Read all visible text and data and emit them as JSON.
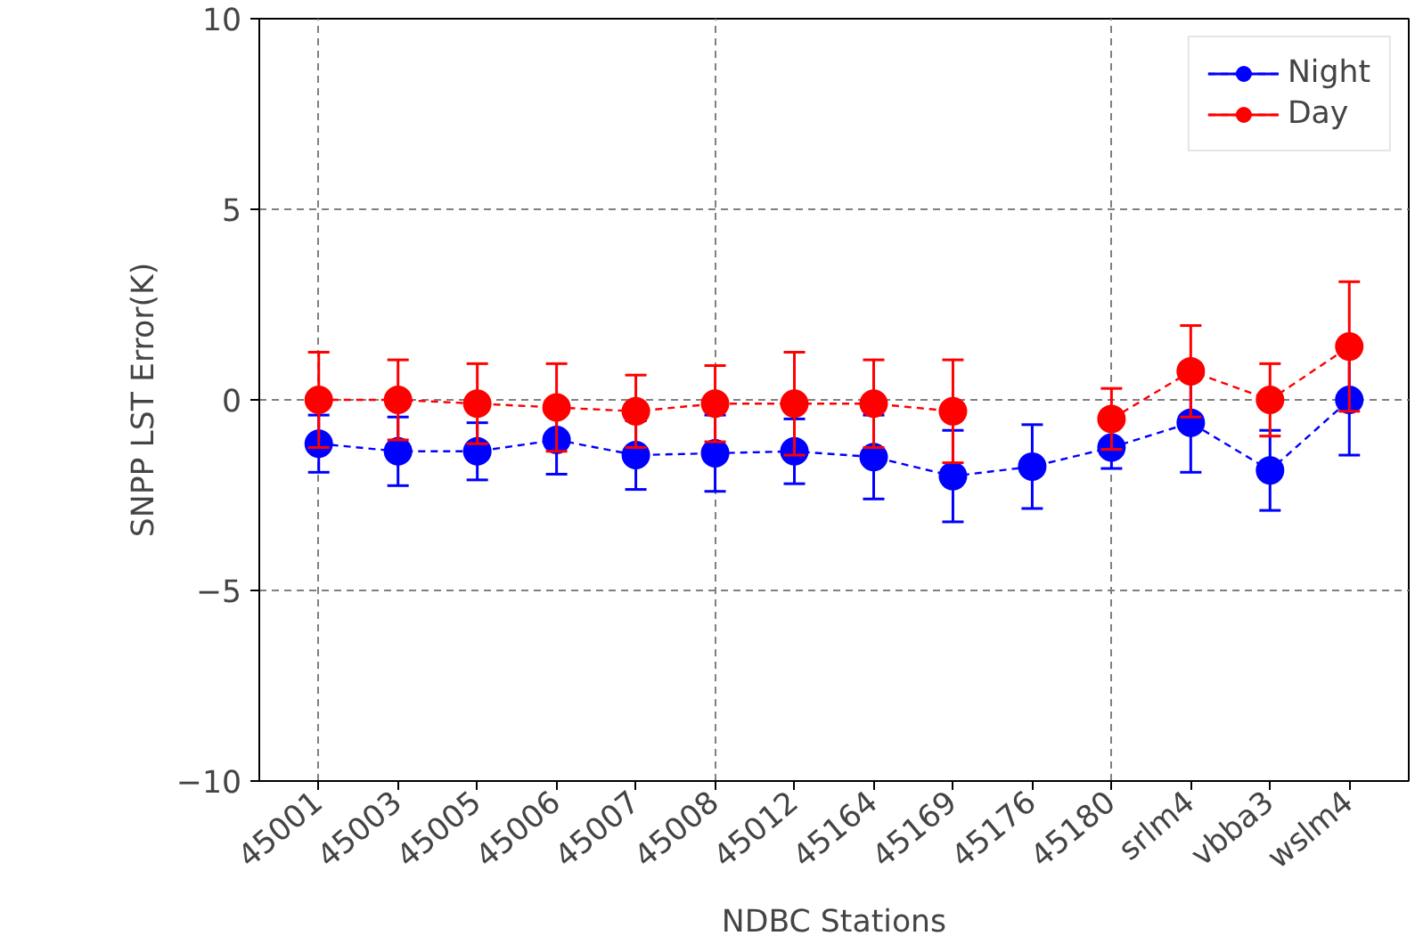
{
  "chart_data": {
    "type": "line",
    "xlabel": "NDBC Stations",
    "ylabel": "SNPP LST Error(K)",
    "categories": [
      "45001",
      "45003",
      "45005",
      "45006",
      "45007",
      "45008",
      "45012",
      "45164",
      "45169",
      "45176",
      "45180",
      "srlm4",
      "vbba3",
      "wslm4"
    ],
    "series": [
      {
        "name": "Night",
        "color": "#0000ff",
        "values": [
          -1.15,
          -1.35,
          -1.35,
          -1.05,
          -1.45,
          -1.4,
          -1.35,
          -1.5,
          -2.0,
          -1.75,
          -1.25,
          -0.6,
          -1.85,
          0.0
        ],
        "errors": [
          0.75,
          0.9,
          0.75,
          0.9,
          0.9,
          1.0,
          0.85,
          1.1,
          1.2,
          1.1,
          0.55,
          1.3,
          1.05,
          1.45
        ]
      },
      {
        "name": "Day",
        "color": "#ff0000",
        "values": [
          0.0,
          0.0,
          -0.1,
          -0.2,
          -0.3,
          -0.1,
          -0.1,
          -0.1,
          -0.3,
          null,
          -0.5,
          0.75,
          0.0,
          1.4
        ],
        "errors": [
          1.25,
          1.05,
          1.05,
          1.15,
          0.95,
          1.0,
          1.35,
          1.15,
          1.35,
          null,
          0.8,
          1.2,
          0.95,
          1.7
        ]
      }
    ],
    "ylim": [
      -10,
      10
    ],
    "yticks": [
      -10,
      -5,
      0,
      5,
      10
    ],
    "grid": true,
    "legend": "top right",
    "marker": "circle",
    "line_style": "dashed"
  }
}
